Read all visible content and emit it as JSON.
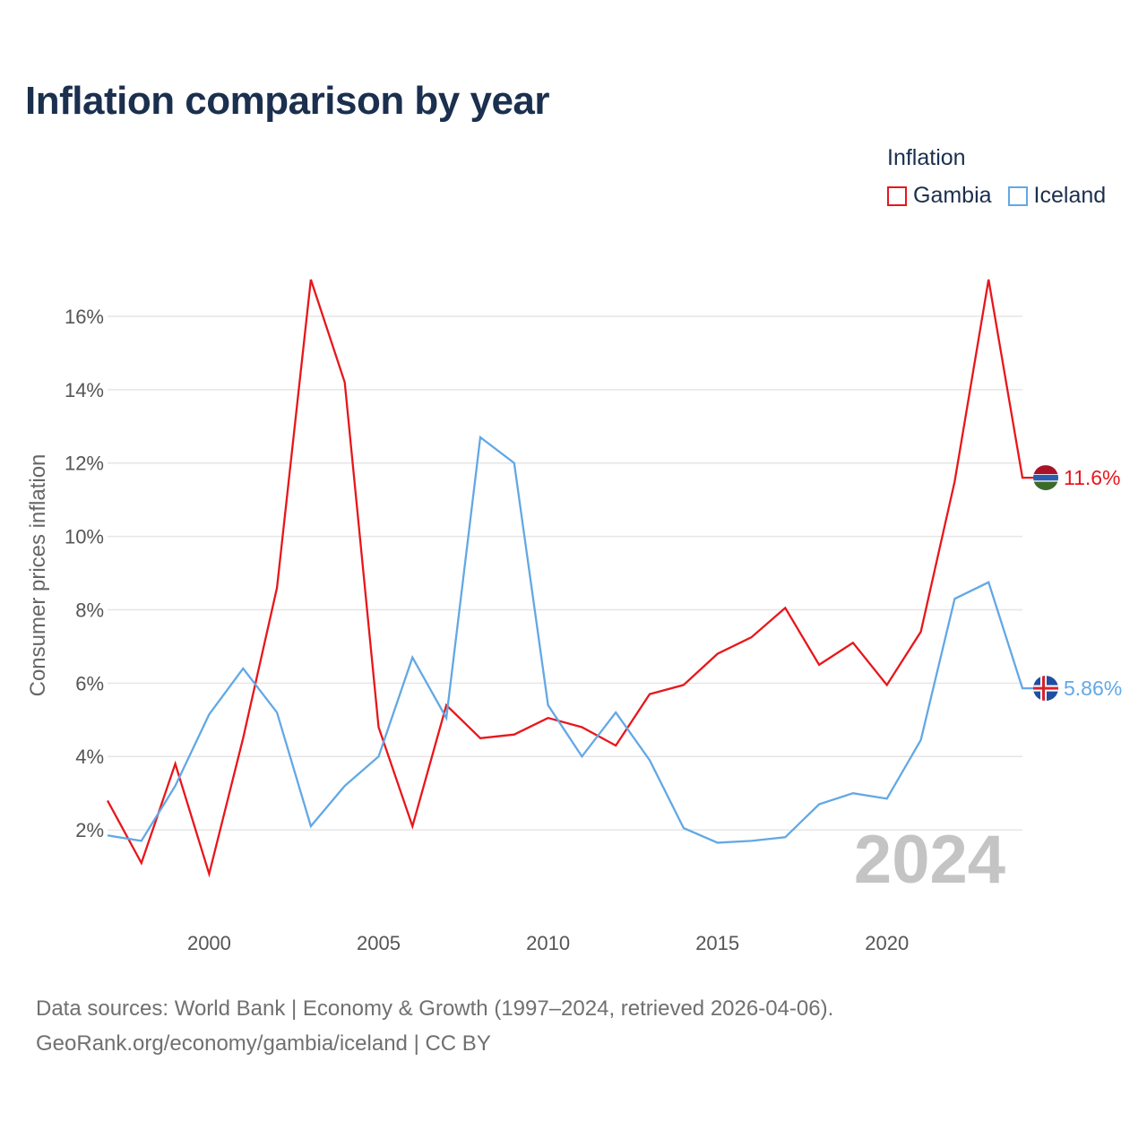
{
  "title": "Inflation comparison by year",
  "legend": {
    "title": "Inflation",
    "items": [
      {
        "label": "Gambia",
        "color": "#e8161b"
      },
      {
        "label": "Iceland",
        "color": "#62a8e5"
      }
    ]
  },
  "footer": {
    "line1": "Data sources: World Bank | Economy & Growth (1997–2024, retrieved 2026-04-06).",
    "line2": "GeoRank.org/economy/gambia/iceland | CC BY"
  },
  "chart_data": {
    "type": "line",
    "title": "Inflation comparison by year",
    "xlabel": "",
    "ylabel": "Consumer prices inflation",
    "xlim": [
      1997,
      2024
    ],
    "ylim": [
      0,
      17
    ],
    "grid": true,
    "x_ticks": [
      2000,
      2005,
      2010,
      2015,
      2020
    ],
    "y_ticks": [
      2,
      4,
      6,
      8,
      10,
      12,
      14,
      16
    ],
    "y_tick_labels": [
      "2%",
      "4%",
      "6%",
      "8%",
      "10%",
      "12%",
      "14%",
      "16%"
    ],
    "year_watermark": "2024",
    "x": [
      1997,
      1998,
      1999,
      2000,
      2001,
      2002,
      2003,
      2004,
      2005,
      2006,
      2007,
      2008,
      2009,
      2010,
      2011,
      2012,
      2013,
      2014,
      2015,
      2016,
      2017,
      2018,
      2019,
      2020,
      2021,
      2022,
      2023,
      2024
    ],
    "series": [
      {
        "name": "Gambia",
        "color": "#e8161b",
        "end_label": "11.6%",
        "flag_icon": "gambia-flag-icon",
        "values": [
          2.8,
          1.1,
          3.8,
          0.8,
          4.5,
          8.6,
          17.0,
          14.2,
          4.8,
          2.1,
          5.4,
          4.5,
          4.6,
          5.05,
          4.8,
          4.3,
          5.7,
          5.95,
          6.8,
          7.25,
          8.05,
          6.5,
          7.1,
          5.95,
          7.4,
          11.5,
          17.0,
          11.6
        ]
      },
      {
        "name": "Iceland",
        "color": "#62a8e5",
        "end_label": "5.86%",
        "flag_icon": "iceland-flag-icon",
        "values": [
          1.85,
          1.7,
          3.2,
          5.15,
          6.4,
          5.2,
          2.1,
          3.2,
          4.0,
          6.7,
          5.05,
          12.7,
          12.0,
          5.4,
          4.0,
          5.2,
          3.9,
          2.05,
          1.65,
          1.7,
          1.8,
          2.7,
          3.0,
          2.85,
          4.45,
          8.3,
          8.75,
          5.86
        ]
      }
    ]
  }
}
